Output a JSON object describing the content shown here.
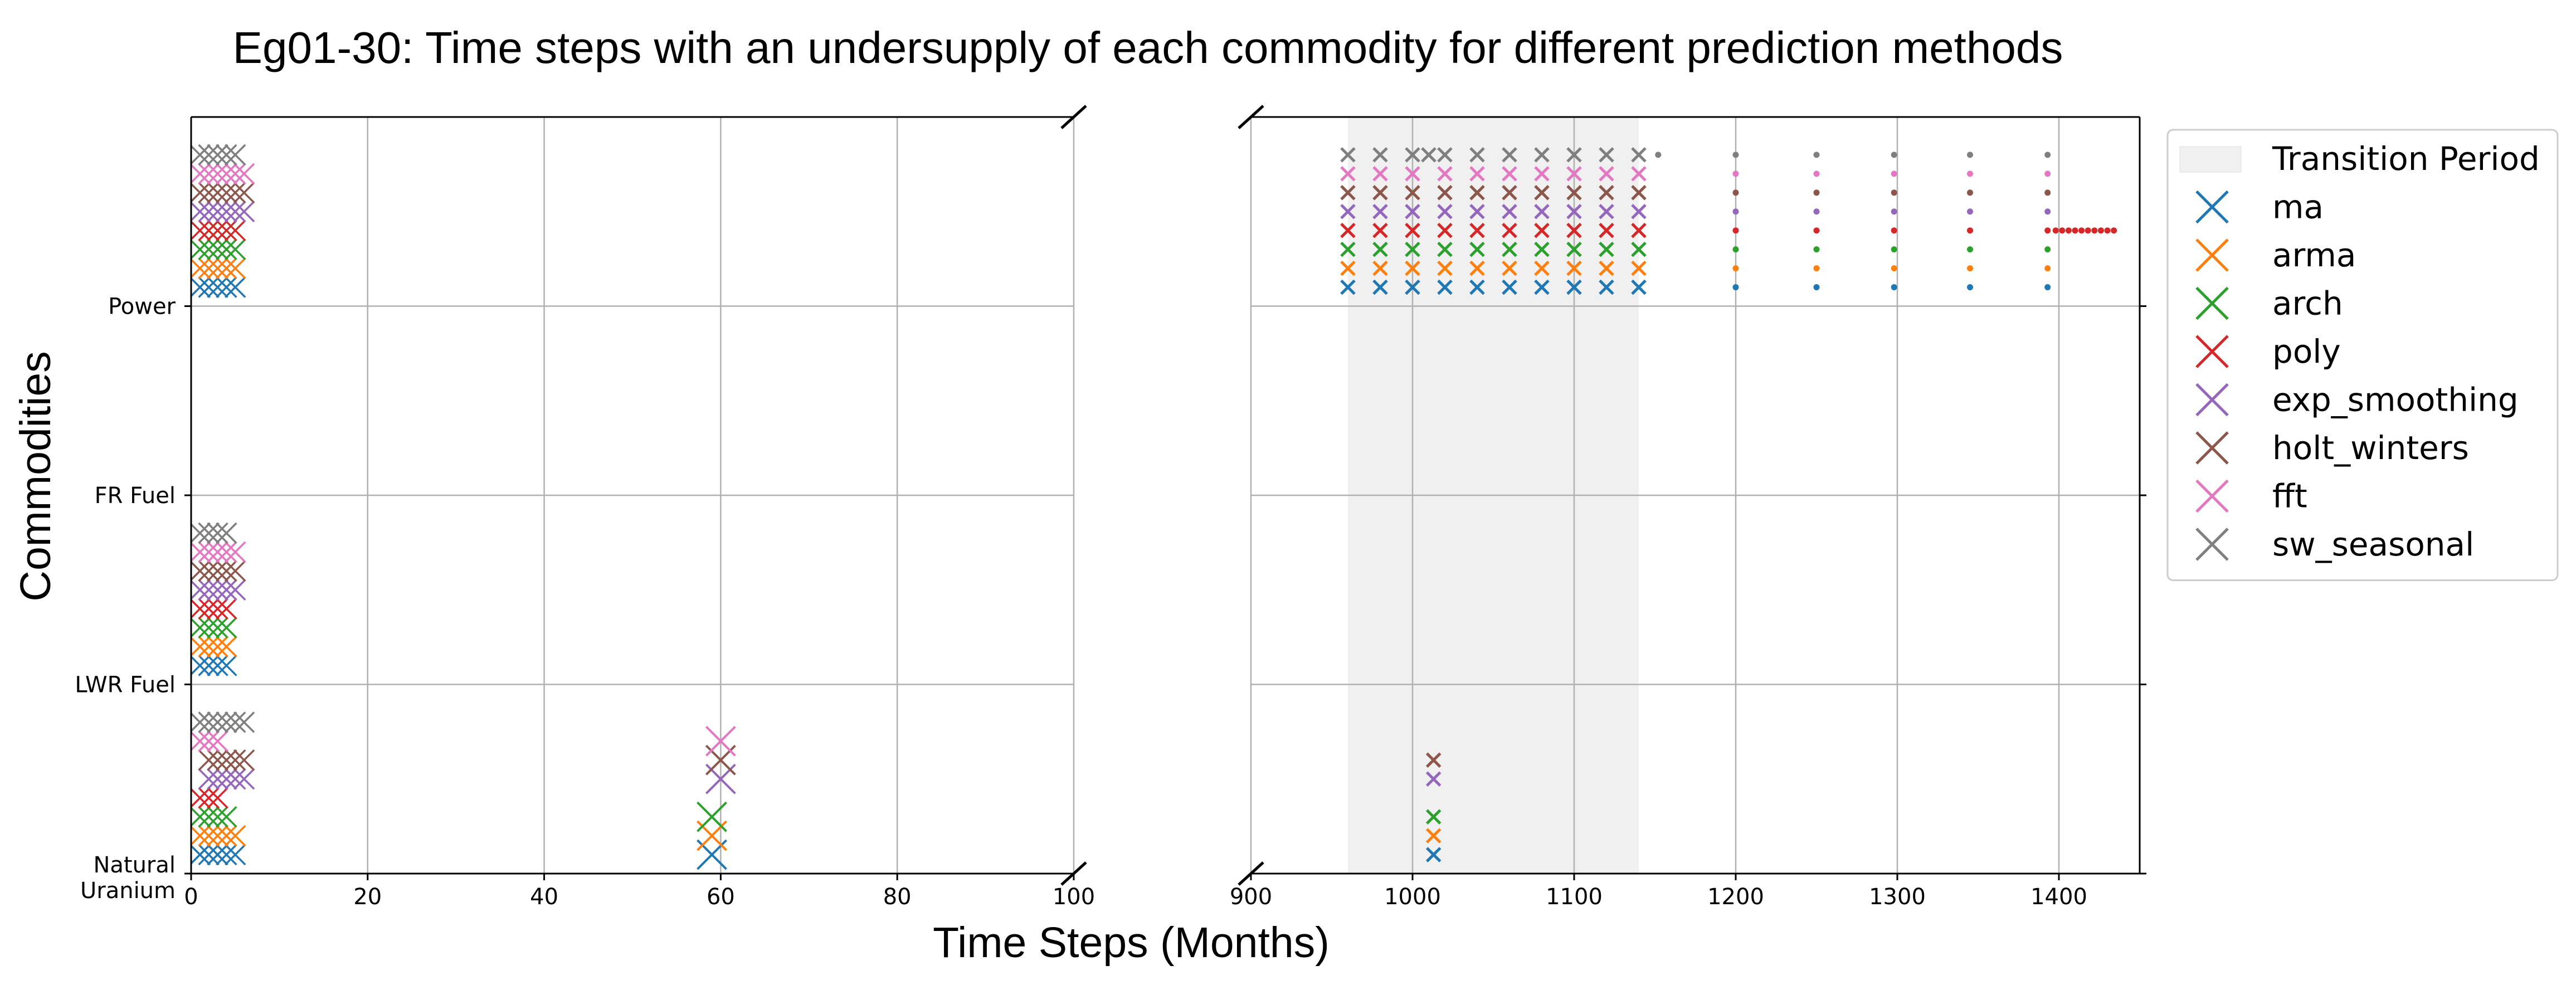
{
  "chart_data": {
    "type": "scatter",
    "title": "Eg01-30: Time steps with an undersupply of each commodity for different prediction methods",
    "xlabel": "Time Steps (Months)",
    "ylabel": "Commodities",
    "broken_x_axis": true,
    "left_panel": {
      "xlim": [
        0,
        100
      ],
      "xticks": [
        "0",
        "20",
        "40",
        "60",
        "80",
        "100"
      ]
    },
    "right_panel": {
      "xlim": [
        900,
        1450
      ],
      "xticks": [
        "900",
        "1000",
        "1100",
        "1200",
        "1300",
        "1400"
      ]
    },
    "ylim": [
      0,
      4
    ],
    "categories": [
      "Natural\nUranium",
      "LWR Fuel",
      "FR Fuel",
      "Power"
    ],
    "grid": true,
    "legend_position": "upper right, outside plot",
    "transition_period": {
      "label": "Transition Period",
      "x": [
        960,
        1140
      ],
      "color": "#f0f0f0"
    },
    "series": [
      {
        "name": "ma",
        "color": "#1f77b4",
        "offset": 0.1,
        "points": {
          "Natural Uranium": [
            1,
            1,
            2,
            3,
            3,
            4,
            5,
            59,
            1013
          ],
          "LWR Fuel": [
            1,
            2,
            3,
            4
          ],
          "Power": [
            1,
            2,
            3,
            4,
            5,
            960,
            980,
            1000,
            1020,
            1040,
            1060,
            1080,
            1100,
            1120,
            1140,
            1200,
            1250,
            1298,
            1345,
            1393
          ]
        }
      },
      {
        "name": "arma",
        "color": "#ff7f0e",
        "offset": 0.2,
        "points": {
          "Natural Uranium": [
            1,
            2,
            3,
            4,
            5,
            59,
            1013
          ],
          "LWR Fuel": [
            1,
            2,
            3,
            4
          ],
          "Power": [
            1,
            2,
            3,
            4,
            5,
            960,
            980,
            1000,
            1020,
            1040,
            1060,
            1080,
            1100,
            1120,
            1140,
            1200,
            1250,
            1298,
            1345,
            1393
          ]
        }
      },
      {
        "name": "arch",
        "color": "#2ca02c",
        "offset": 0.3,
        "points": {
          "Natural Uranium": [
            1,
            2,
            3,
            4,
            59,
            1013
          ],
          "LWR Fuel": [
            1,
            2,
            3,
            4
          ],
          "Power": [
            1,
            2,
            3,
            4,
            5,
            960,
            980,
            1000,
            1020,
            1040,
            1060,
            1080,
            1100,
            1120,
            1140,
            1200,
            1250,
            1298,
            1345,
            1393
          ]
        }
      },
      {
        "name": "poly",
        "color": "#d62728",
        "offset": 0.4,
        "points": {
          "Natural Uranium": [
            1,
            2,
            3
          ],
          "LWR Fuel": [
            1,
            2,
            3,
            4
          ],
          "Power": [
            1,
            2,
            3,
            4,
            5,
            960,
            980,
            1000,
            1020,
            1040,
            1060,
            1080,
            1100,
            1120,
            1140,
            1200,
            1250,
            1298,
            1345,
            1393,
            1398,
            1402,
            1406,
            1410,
            1414,
            1418,
            1422,
            1426,
            1430,
            1434
          ]
        }
      },
      {
        "name": "exp_smoothing",
        "color": "#9467bd",
        "offset": 0.5,
        "points": {
          "Natural Uranium": [
            2,
            3,
            4,
            5,
            6,
            60,
            1013
          ],
          "LWR Fuel": [
            1,
            2,
            3,
            4,
            5
          ],
          "Power": [
            1,
            2,
            3,
            4,
            5,
            6,
            960,
            980,
            1000,
            1020,
            1040,
            1060,
            1080,
            1100,
            1120,
            1140,
            1200,
            1250,
            1298,
            1345,
            1393
          ]
        }
      },
      {
        "name": "holt_winters",
        "color": "#8c564b",
        "offset": 0.6,
        "points": {
          "Natural Uranium": [
            2,
            3,
            4,
            5,
            6,
            60,
            1013
          ],
          "LWR Fuel": [
            1,
            2,
            3,
            4,
            5
          ],
          "Power": [
            1,
            2,
            3,
            4,
            5,
            6,
            960,
            980,
            1000,
            1020,
            1040,
            1060,
            1080,
            1100,
            1120,
            1140,
            1200,
            1250,
            1298,
            1345,
            1393
          ]
        }
      },
      {
        "name": "fft",
        "color": "#e377c2",
        "offset": 0.7,
        "points": {
          "Natural Uranium": [
            1,
            2,
            3,
            60
          ],
          "LWR Fuel": [
            1,
            2,
            3,
            4,
            5
          ],
          "Power": [
            1,
            2,
            3,
            4,
            5,
            6,
            960,
            980,
            1000,
            1020,
            1040,
            1060,
            1080,
            1100,
            1120,
            1140,
            1200,
            1250,
            1298,
            1345,
            1393
          ]
        }
      },
      {
        "name": "sw_seasonal",
        "color": "#7f7f7f",
        "offset": 0.8,
        "points": {
          "Natural Uranium": [
            1,
            2,
            3,
            4,
            5,
            6
          ],
          "LWR Fuel": [
            1,
            2,
            3,
            4
          ],
          "Power": [
            1,
            2,
            3,
            4,
            5,
            960,
            980,
            1000,
            1010,
            1020,
            1040,
            1060,
            1080,
            1100,
            1120,
            1140,
            1152,
            1200,
            1250,
            1298,
            1345,
            1393
          ]
        }
      }
    ]
  }
}
